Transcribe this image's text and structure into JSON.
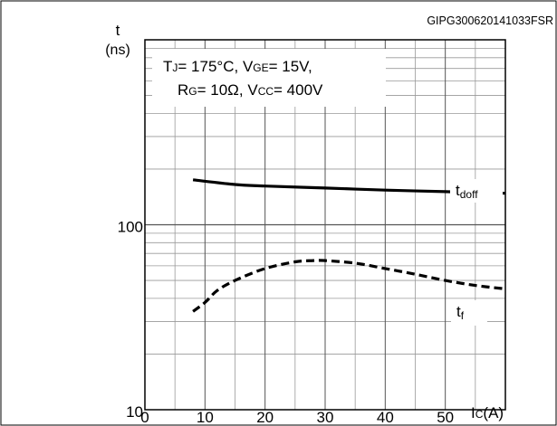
{
  "figure_id": "GIPG300620141033FSR",
  "chart_data": {
    "type": "line",
    "ylabel": "t",
    "yunit": "(ns)",
    "xlabel": "I",
    "xlabel_sub": "C",
    "xunit": "(A)",
    "xlim": [
      0,
      60
    ],
    "ylim": [
      10,
      1000
    ],
    "yscale": "log",
    "grid": true,
    "x_ticks": [
      "0",
      "10",
      "20",
      "30",
      "40",
      "50"
    ],
    "y_ticks": [
      {
        "value": 10,
        "label": "10"
      },
      {
        "value": 100,
        "label": "100"
      }
    ],
    "conditions": {
      "line1": [
        {
          "text": "T",
          "sub": "J",
          "suffix": "= 175°C, "
        },
        {
          "text": "V",
          "sub": "GE",
          "suffix": "= 15V,"
        }
      ],
      "line2": [
        {
          "text": "R",
          "sub": "G",
          "suffix": "= 10Ω, "
        },
        {
          "text": "V",
          "sub": "CC",
          "suffix": "= 400V"
        }
      ]
    },
    "series": [
      {
        "name_main": "t",
        "name_sub": "doff",
        "style": "solid",
        "x": [
          8,
          15,
          20,
          30,
          40,
          50,
          60
        ],
        "y": [
          175,
          165,
          162,
          158,
          154,
          151,
          148
        ]
      },
      {
        "name_main": "t",
        "name_sub": "f",
        "style": "dashed",
        "x": [
          8,
          10,
          12,
          15,
          20,
          25,
          28,
          30,
          35,
          40,
          45,
          50,
          55,
          60
        ],
        "y": [
          34,
          38,
          44,
          50,
          58,
          63,
          64,
          64,
          62,
          58,
          54,
          50,
          47,
          45
        ]
      }
    ]
  }
}
